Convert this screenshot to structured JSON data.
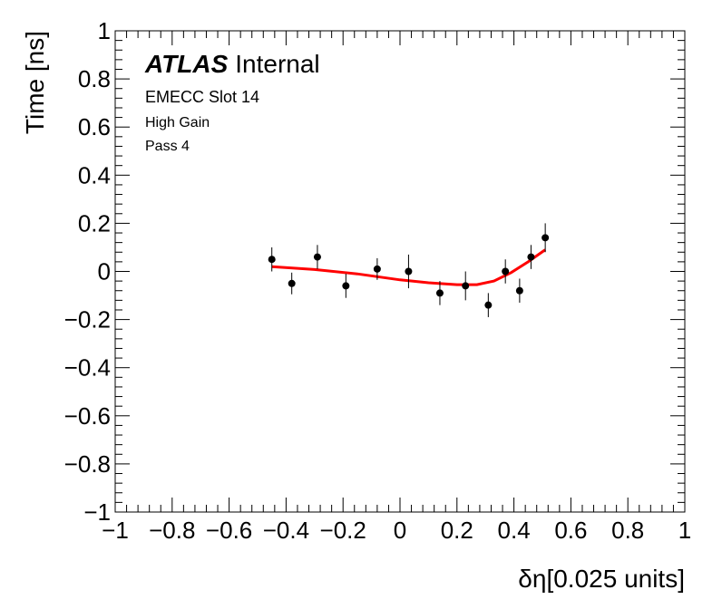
{
  "chart_data": {
    "type": "scatter",
    "title": "",
    "xlabel": "δη[0.025 units]",
    "ylabel": "Time [ns]",
    "xlim": [
      -1,
      1
    ],
    "ylim": [
      -1,
      1
    ],
    "x_ticks": [
      "−1",
      "−0.8",
      "−0.6",
      "−0.4",
      "−0.2",
      "0",
      "0.2",
      "0.4",
      "0.6",
      "0.8",
      "1"
    ],
    "y_ticks": [
      "−1",
      "−0.8",
      "−0.6",
      "−0.4",
      "−0.2",
      "0",
      "0.2",
      "0.4",
      "0.6",
      "0.8",
      "1"
    ],
    "grid": false,
    "annotations": {
      "atlas_bold": "ATLAS",
      "atlas_normal": "Internal",
      "line1": "EMECC Slot 14",
      "line2": "High Gain",
      "line3": "Pass 4"
    },
    "series": [
      {
        "kind": "points_with_errors",
        "color": "#000000",
        "points": [
          {
            "x": -0.45,
            "y": 0.05,
            "err": 0.05
          },
          {
            "x": -0.38,
            "y": -0.05,
            "err": 0.045
          },
          {
            "x": -0.29,
            "y": 0.06,
            "err": 0.05
          },
          {
            "x": -0.19,
            "y": -0.06,
            "err": 0.05
          },
          {
            "x": -0.08,
            "y": 0.01,
            "err": 0.045
          },
          {
            "x": 0.03,
            "y": 0.0,
            "err": 0.07
          },
          {
            "x": 0.14,
            "y": -0.09,
            "err": 0.05
          },
          {
            "x": 0.23,
            "y": -0.06,
            "err": 0.06
          },
          {
            "x": 0.31,
            "y": -0.14,
            "err": 0.05
          },
          {
            "x": 0.37,
            "y": 0.0,
            "err": 0.05
          },
          {
            "x": 0.42,
            "y": -0.08,
            "err": 0.05
          },
          {
            "x": 0.46,
            "y": 0.06,
            "err": 0.05
          },
          {
            "x": 0.51,
            "y": 0.14,
            "err": 0.06
          }
        ]
      },
      {
        "kind": "fit_curve",
        "color": "#ff0000",
        "x": [
          -0.45,
          -0.3,
          -0.15,
          0.0,
          0.1,
          0.2,
          0.27,
          0.33,
          0.39,
          0.45,
          0.51
        ],
        "y": [
          0.02,
          0.008,
          -0.01,
          -0.035,
          -0.047,
          -0.055,
          -0.055,
          -0.04,
          -0.005,
          0.04,
          0.09
        ]
      }
    ]
  }
}
